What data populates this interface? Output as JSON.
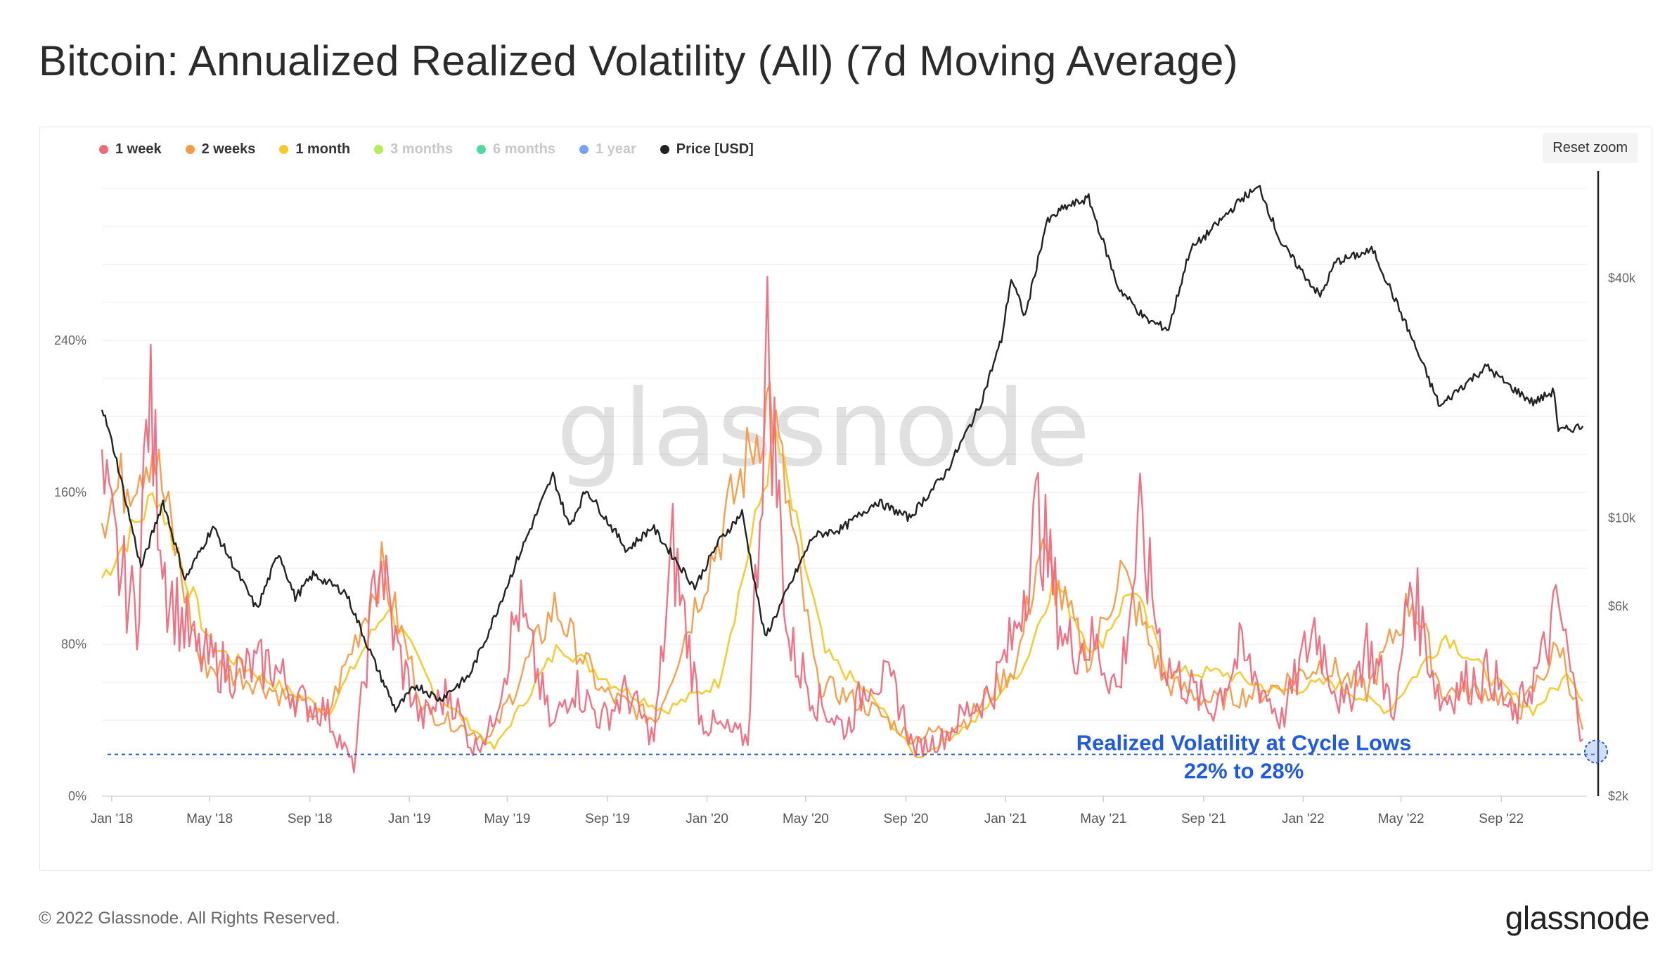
{
  "title": "Bitcoin: Annualized Realized Volatility (All) (7d Moving Average)",
  "reset_zoom_label": "Reset zoom",
  "legend": [
    {
      "label": "1 week",
      "color": "#f06a7e",
      "active": true
    },
    {
      "label": "2 weeks",
      "color": "#f79a46",
      "active": true
    },
    {
      "label": "1 month",
      "color": "#f7c82a",
      "active": true
    },
    {
      "label": "3 months",
      "color": "#b5ec5a",
      "active": false
    },
    {
      "label": "6 months",
      "color": "#4fd9a0",
      "active": false
    },
    {
      "label": "1 year",
      "color": "#7aa2f2",
      "active": false
    },
    {
      "label": "Price [USD]",
      "color": "#222222",
      "active": true
    }
  ],
  "watermark": "glassnode",
  "annotation": {
    "line1": "Realized Volatility at Cycle Lows",
    "line2": "22% to 28%",
    "color": "#1f5ae0",
    "level": 22
  },
  "footer": "© 2022 Glassnode. All Rights Reserved.",
  "brand": "glassnode",
  "chart_data": {
    "type": "line",
    "x_range": [
      "2017-12-20",
      "2022-12-15"
    ],
    "x_ticks": [
      "Jan '18",
      "May '18",
      "Sep '18",
      "Jan '19",
      "May '19",
      "Sep '19",
      "Jan '20",
      "May '20",
      "Sep '20",
      "Jan '21",
      "May '21",
      "Sep '21",
      "Jan '22",
      "May '22",
      "Sep '22"
    ],
    "y_left": {
      "ticks": [
        0,
        80,
        160,
        240
      ],
      "tick_labels": [
        "0%",
        "80%",
        "160%",
        "240%"
      ],
      "range": [
        0,
        330
      ]
    },
    "y_right": {
      "scale": "log",
      "ticks": [
        2000,
        6000,
        10000,
        40000
      ],
      "tick_labels": [
        "$2k",
        "$6k",
        "$10k",
        "$40k"
      ],
      "range": [
        2000,
        75000
      ]
    },
    "series": [
      {
        "name": "1 week",
        "color": "#f06a7e",
        "axis": "left",
        "x": [
          "2017-12-20",
          "2018-01-10",
          "2018-02-01",
          "2018-02-15",
          "2018-03-10",
          "2018-04-15",
          "2018-06-01",
          "2018-07-15",
          "2018-08-20",
          "2018-09-20",
          "2018-10-25",
          "2018-11-25",
          "2018-12-15",
          "2019-01-15",
          "2019-02-20",
          "2019-03-20",
          "2019-04-10",
          "2019-05-15",
          "2019-06-25",
          "2019-07-20",
          "2019-08-25",
          "2019-09-25",
          "2019-10-28",
          "2019-11-20",
          "2019-12-25",
          "2020-01-20",
          "2020-02-20",
          "2020-03-15",
          "2020-04-10",
          "2020-05-15",
          "2020-06-20",
          "2020-07-20",
          "2020-08-20",
          "2020-09-10",
          "2020-10-15",
          "2020-11-15",
          "2020-12-15",
          "2021-01-12",
          "2021-02-10",
          "2021-03-15",
          "2021-04-20",
          "2021-05-20",
          "2021-06-15",
          "2021-07-15",
          "2021-08-20",
          "2021-09-10",
          "2021-10-15",
          "2021-11-15",
          "2021-12-06",
          "2022-01-15",
          "2022-02-20",
          "2022-03-20",
          "2022-04-25",
          "2022-05-12",
          "2022-06-18",
          "2022-07-20",
          "2022-08-20",
          "2022-09-15",
          "2022-10-20",
          "2022-11-10",
          "2022-12-10"
        ],
        "y": [
          160,
          120,
          95,
          210,
          110,
          75,
          65,
          70,
          50,
          45,
          15,
          130,
          80,
          40,
          55,
          25,
          35,
          100,
          35,
          60,
          40,
          55,
          30,
          130,
          40,
          35,
          30,
          235,
          80,
          50,
          35,
          65,
          55,
          25,
          30,
          45,
          55,
          85,
          150,
          80,
          80,
          55,
          140,
          70,
          55,
          45,
          75,
          55,
          40,
          90,
          45,
          80,
          45,
          115,
          50,
          60,
          65,
          40,
          70,
          100,
          30
        ]
      },
      {
        "name": "2 weeks",
        "color": "#f79a46",
        "axis": "left",
        "x": [
          "2017-12-20",
          "2018-02-20",
          "2018-04-20",
          "2018-07-01",
          "2018-09-20",
          "2018-11-28",
          "2019-01-20",
          "2019-04-10",
          "2019-06-28",
          "2019-08-25",
          "2019-10-30",
          "2019-12-25",
          "2020-03-18",
          "2020-05-15",
          "2020-07-25",
          "2020-09-10",
          "2020-11-15",
          "2021-01-15",
          "2021-02-12",
          "2021-04-15",
          "2021-05-22",
          "2021-07-15",
          "2021-09-10",
          "2021-11-15",
          "2022-01-25",
          "2022-03-20",
          "2022-05-15",
          "2022-06-20",
          "2022-08-20",
          "2022-09-25",
          "2022-11-12",
          "2022-12-10"
        ],
        "y": [
          150,
          185,
          70,
          60,
          40,
          120,
          45,
          30,
          100,
          55,
          40,
          110,
          210,
          60,
          45,
          30,
          40,
          70,
          130,
          70,
          120,
          60,
          50,
          55,
          70,
          55,
          105,
          55,
          55,
          45,
          80,
          35
        ]
      },
      {
        "name": "1 month",
        "color": "#f7c82a",
        "axis": "left",
        "x": [
          "2017-12-20",
          "2018-02-25",
          "2018-05-01",
          "2018-07-15",
          "2018-09-25",
          "2018-12-05",
          "2019-02-01",
          "2019-04-15",
          "2019-07-05",
          "2019-09-05",
          "2019-11-10",
          "2020-01-15",
          "2020-03-25",
          "2020-05-25",
          "2020-07-25",
          "2020-09-15",
          "2020-11-25",
          "2021-01-25",
          "2021-03-01",
          "2021-04-20",
          "2021-06-05",
          "2021-07-20",
          "2021-09-25",
          "2021-12-01",
          "2022-02-05",
          "2022-04-15",
          "2022-06-25",
          "2022-08-25",
          "2022-10-10",
          "2022-11-25",
          "2022-12-10"
        ],
        "y": [
          115,
          160,
          80,
          60,
          45,
          100,
          55,
          25,
          80,
          60,
          45,
          60,
          190,
          75,
          50,
          20,
          40,
          70,
          115,
          75,
          110,
          65,
          65,
          55,
          60,
          45,
          85,
          60,
          45,
          65,
          50
        ]
      },
      {
        "name": "Price [USD]",
        "color": "#222222",
        "axis": "right",
        "x": [
          "2017-12-20",
          "2018-01-05",
          "2018-02-06",
          "2018-03-05",
          "2018-04-01",
          "2018-05-05",
          "2018-06-28",
          "2018-07-25",
          "2018-08-14",
          "2018-09-05",
          "2018-10-15",
          "2018-11-20",
          "2018-12-15",
          "2019-01-10",
          "2019-02-07",
          "2019-03-15",
          "2019-04-05",
          "2019-05-15",
          "2019-06-26",
          "2019-07-16",
          "2019-08-06",
          "2019-09-25",
          "2019-10-26",
          "2019-12-17",
          "2020-01-15",
          "2020-02-13",
          "2020-03-12",
          "2020-04-15",
          "2020-05-10",
          "2020-06-15",
          "2020-07-27",
          "2020-09-05",
          "2020-10-20",
          "2020-11-30",
          "2020-12-27",
          "2021-01-08",
          "2021-01-25",
          "2021-02-20",
          "2021-03-13",
          "2021-04-13",
          "2021-05-19",
          "2021-06-22",
          "2021-07-20",
          "2021-08-15",
          "2021-09-07",
          "2021-10-20",
          "2021-11-09",
          "2021-12-05",
          "2022-01-22",
          "2022-02-10",
          "2022-03-28",
          "2022-05-09",
          "2022-06-18",
          "2022-07-10",
          "2022-08-14",
          "2022-09-10",
          "2022-10-10",
          "2022-11-05",
          "2022-11-10",
          "2022-12-10"
        ],
        "y": [
          19000,
          14500,
          7500,
          11000,
          7000,
          9500,
          5900,
          8200,
          6300,
          7200,
          6500,
          4300,
          3300,
          3800,
          3500,
          4000,
          5000,
          8000,
          12800,
          9500,
          11800,
          8300,
          9500,
          6700,
          8700,
          10300,
          5000,
          7000,
          9000,
          9400,
          11000,
          10000,
          13000,
          19000,
          28000,
          40000,
          32000,
          55000,
          60000,
          63500,
          38000,
          31500,
          29800,
          47000,
          52000,
          64000,
          67500,
          49000,
          36000,
          44000,
          47000,
          30000,
          19000,
          21000,
          24000,
          21500,
          19500,
          20800,
          16500,
          17000
        ]
      }
    ]
  }
}
